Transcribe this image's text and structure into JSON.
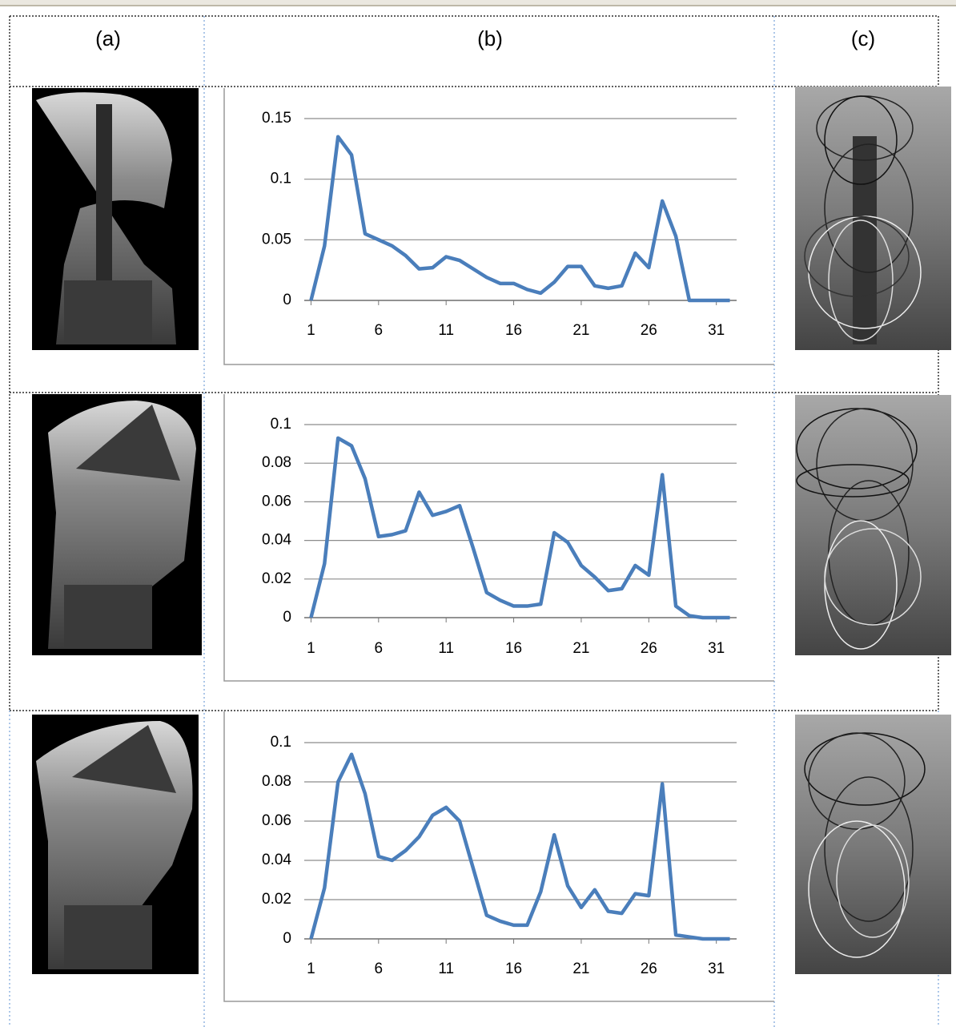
{
  "table": {
    "headers": [
      "(a)",
      "(b)",
      "(c)"
    ]
  },
  "chart_data": [
    {
      "type": "line",
      "x": [
        1,
        2,
        3,
        4,
        5,
        6,
        7,
        8,
        9,
        10,
        11,
        12,
        13,
        14,
        15,
        16,
        17,
        18,
        19,
        20,
        21,
        22,
        23,
        24,
        25,
        26,
        27,
        28,
        29,
        30,
        31,
        32
      ],
      "values": [
        0,
        0.045,
        0.135,
        0.12,
        0.055,
        0.05,
        0.045,
        0.037,
        0.026,
        0.027,
        0.036,
        0.033,
        0.026,
        0.019,
        0.014,
        0.014,
        0.009,
        0.006,
        0.015,
        0.028,
        0.028,
        0.012,
        0.01,
        0.012,
        0.039,
        0.027,
        0.082,
        0.053,
        0,
        0,
        0,
        0
      ],
      "color": "#4a7ebb",
      "xlim": [
        0.5,
        32.5
      ],
      "xticks": [
        1,
        6,
        11,
        16,
        21,
        26,
        31
      ],
      "ylim": [
        0,
        0.15
      ],
      "yticks": [
        0,
        0.05,
        0.1,
        0.15
      ],
      "grid": true
    },
    {
      "type": "line",
      "x": [
        1,
        2,
        3,
        4,
        5,
        6,
        7,
        8,
        9,
        10,
        11,
        12,
        13,
        14,
        15,
        16,
        17,
        18,
        19,
        20,
        21,
        22,
        23,
        24,
        25,
        26,
        27,
        28,
        29,
        30,
        31,
        32
      ],
      "values": [
        0,
        0.028,
        0.093,
        0.089,
        0.072,
        0.042,
        0.043,
        0.045,
        0.065,
        0.053,
        0.055,
        0.058,
        0.036,
        0.013,
        0.009,
        0.006,
        0.006,
        0.007,
        0.044,
        0.039,
        0.027,
        0.021,
        0.014,
        0.015,
        0.027,
        0.022,
        0.074,
        0.006,
        0.001,
        0,
        0,
        0
      ],
      "color": "#4a7ebb",
      "xlim": [
        0.5,
        32.5
      ],
      "xticks": [
        1,
        6,
        11,
        16,
        21,
        26,
        31
      ],
      "ylim": [
        0,
        0.1
      ],
      "yticks": [
        0,
        0.02,
        0.04,
        0.06,
        0.08,
        0.1
      ],
      "grid": true
    },
    {
      "type": "line",
      "x": [
        1,
        2,
        3,
        4,
        5,
        6,
        7,
        8,
        9,
        10,
        11,
        12,
        13,
        14,
        15,
        16,
        17,
        18,
        19,
        20,
        21,
        22,
        23,
        24,
        25,
        26,
        27,
        28,
        29,
        30,
        31,
        32
      ],
      "values": [
        0,
        0.026,
        0.08,
        0.094,
        0.074,
        0.042,
        0.04,
        0.045,
        0.052,
        0.063,
        0.067,
        0.06,
        0.036,
        0.012,
        0.009,
        0.007,
        0.007,
        0.024,
        0.053,
        0.027,
        0.016,
        0.025,
        0.014,
        0.013,
        0.023,
        0.022,
        0.079,
        0.002,
        0.001,
        0,
        0,
        0
      ],
      "color": "#4a7ebb",
      "xlim": [
        0.5,
        32.5
      ],
      "xticks": [
        1,
        6,
        11,
        16,
        21,
        26,
        31
      ],
      "ylim": [
        0,
        0.1
      ],
      "yticks": [
        0,
        0.02,
        0.04,
        0.06,
        0.08,
        0.1
      ],
      "grid": true
    }
  ]
}
